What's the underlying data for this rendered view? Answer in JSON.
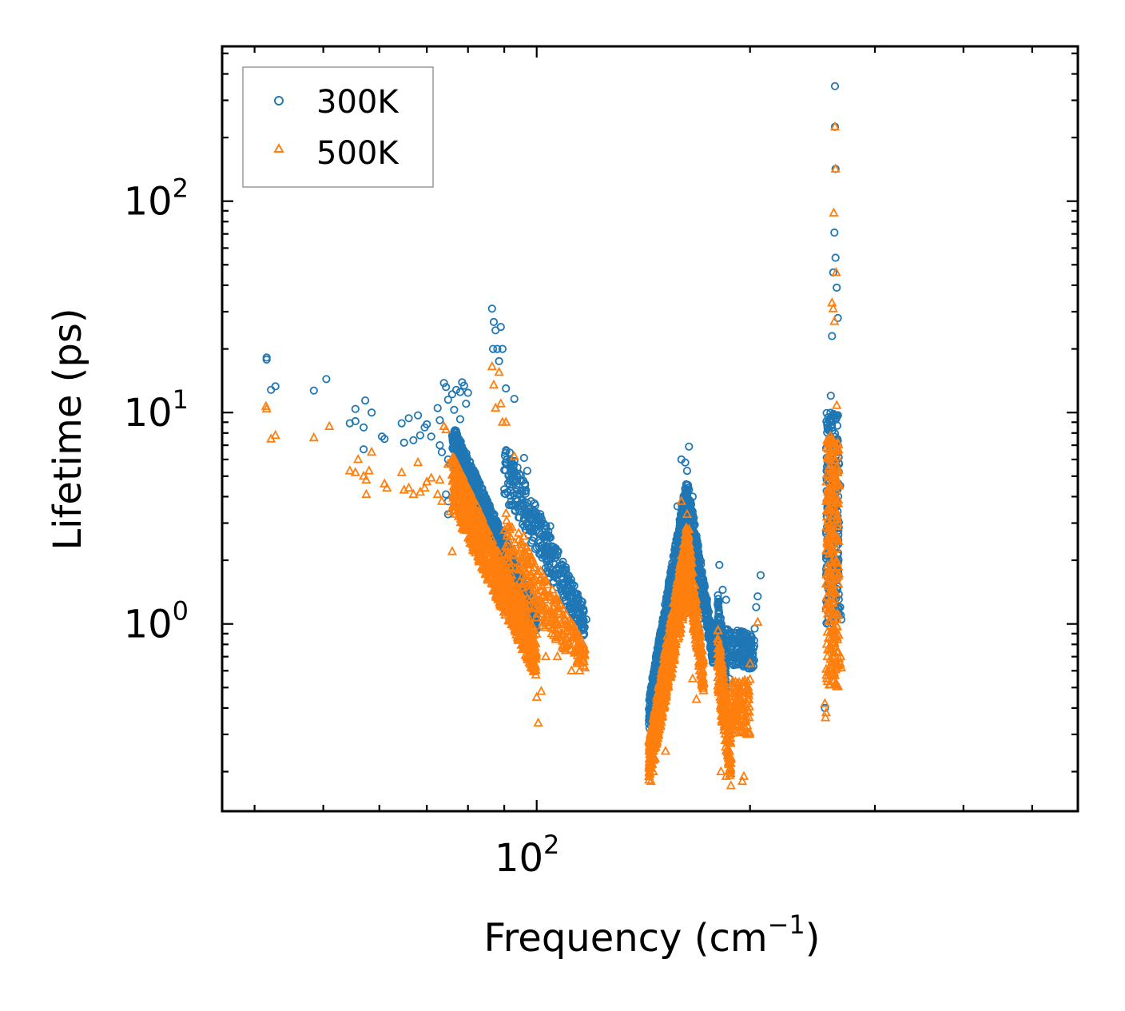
{
  "chart_data": {
    "type": "scatter",
    "title": "",
    "xlabel": "Frequency (cm",
    "xlabel_sup": "−1",
    "xlabel_end": ")",
    "ylabel": "Lifetime (ps)",
    "xscale": "log",
    "yscale": "log",
    "xlim": [
      36,
      580
    ],
    "ylim": [
      0.13,
      540
    ],
    "x_ticks": [
      {
        "value": 100,
        "base": "10",
        "exp": "2"
      }
    ],
    "y_ticks": [
      {
        "value": 1,
        "base": "10",
        "exp": "0"
      },
      {
        "value": 10,
        "base": "10",
        "exp": "1"
      },
      {
        "value": 100,
        "base": "10",
        "exp": "2"
      }
    ],
    "legend_position": "top-left",
    "series": [
      {
        "name": "300K",
        "marker": "circle",
        "color": "#1f77b4",
        "points": [
          [
            41.6,
            18.2
          ],
          [
            41.6,
            17.8
          ],
          [
            42.2,
            12.8
          ],
          [
            42.8,
            13.3
          ],
          [
            48.5,
            12.7
          ],
          [
            50.5,
            14.4
          ],
          [
            54.5,
            8.9
          ],
          [
            55.5,
            10.4
          ],
          [
            57,
            8.5
          ],
          [
            57.3,
            11.4
          ],
          [
            58.5,
            10
          ],
          [
            60.5,
            7.7
          ],
          [
            61,
            7.5
          ],
          [
            57,
            6.7
          ],
          [
            55.5,
            9.1
          ],
          [
            64.5,
            8.9
          ],
          [
            65,
            7.2
          ],
          [
            66,
            9.4
          ],
          [
            67,
            7.4
          ],
          [
            68,
            9.7
          ],
          [
            68.5,
            7.8
          ],
          [
            69.5,
            8.5
          ],
          [
            70,
            8.8
          ],
          [
            71,
            7.7
          ],
          [
            72.5,
            10.5
          ],
          [
            73,
            9.2
          ],
          [
            73,
            7
          ],
          [
            73.5,
            6.5
          ],
          [
            74,
            13.8
          ],
          [
            74.5,
            13.2
          ],
          [
            75,
            11.5
          ],
          [
            75,
            6
          ],
          [
            75.5,
            5.7
          ],
          [
            76,
            12.2
          ],
          [
            76.5,
            10.3
          ],
          [
            77,
            12.8
          ],
          [
            77,
            5.4
          ],
          [
            78,
            9.3
          ],
          [
            78,
            12.5
          ],
          [
            78.5,
            13.9
          ],
          [
            79,
            13.4
          ],
          [
            79.5,
            11
          ],
          [
            80,
            12.4
          ],
          [
            80,
            5
          ],
          [
            74.5,
            4.1
          ],
          [
            75,
            3.8
          ],
          [
            75,
            3.3
          ],
          [
            86.5,
            31
          ],
          [
            87,
            26.8
          ],
          [
            86.8,
            20
          ],
          [
            87.5,
            24.5
          ],
          [
            88.5,
            17.5
          ],
          [
            88,
            20
          ],
          [
            89,
            25.4
          ],
          [
            89.5,
            20
          ],
          [
            90.5,
            13
          ],
          [
            93,
            11.6
          ],
          [
            96,
            6.1
          ],
          [
            97,
            5.3
          ],
          [
            98,
            3.1
          ],
          [
            100,
            2.3
          ],
          [
            102,
            2.6
          ],
          [
            103,
            2.8
          ],
          [
            104.5,
            2.9
          ],
          [
            106,
            2.1
          ],
          [
            107,
            2.2
          ],
          [
            108,
            1.5
          ],
          [
            110,
            1.8
          ],
          [
            111,
            1.6
          ],
          [
            113,
            1.4
          ],
          [
            115,
            1.2
          ],
          [
            116,
            1.1
          ],
          [
            117.5,
            1.05
          ],
          [
            144,
            0.35
          ],
          [
            145,
            0.33
          ],
          [
            146,
            0.31
          ],
          [
            155,
            1.6
          ],
          [
            158,
            3.6
          ],
          [
            160,
            6
          ],
          [
            162,
            5.8
          ],
          [
            163,
            5.3
          ],
          [
            164,
            6.9
          ],
          [
            166,
            4
          ],
          [
            170,
            2
          ],
          [
            172,
            1
          ],
          [
            176,
            0.8
          ],
          [
            181,
            1.9
          ],
          [
            183,
            1.45
          ],
          [
            185,
            1.3
          ],
          [
            187,
            0.55
          ],
          [
            190,
            0.9
          ],
          [
            193,
            0.82
          ],
          [
            195,
            0.75
          ],
          [
            197,
            0.71
          ],
          [
            200,
            0.67
          ],
          [
            203,
            0.95
          ],
          [
            204,
            1.2
          ],
          [
            205,
            1.35
          ],
          [
            207,
            1.7
          ],
          [
            255,
            0.4
          ],
          [
            257,
            2.5
          ],
          [
            258,
            4
          ],
          [
            259,
            7
          ],
          [
            260,
            12
          ],
          [
            261,
            23
          ],
          [
            262,
            46
          ],
          [
            263,
            71
          ],
          [
            264,
            54
          ],
          [
            265,
            39
          ],
          [
            266,
            28
          ],
          [
            263.5,
            225
          ],
          [
            264,
            142
          ],
          [
            263.5,
            350
          ],
          [
            265,
            5.5
          ],
          [
            267,
            5.7
          ],
          [
            268,
            4.5
          ],
          [
            266,
            1.5
          ],
          [
            268,
            1.2
          ],
          [
            268.5,
            1.1
          ],
          [
            269,
            1.05
          ]
        ],
        "bands": [
          {
            "x": [
              76,
              100
            ],
            "y_top": [
              9.0,
              1.2
            ],
            "y_bot": [
              6.8,
              0.9
            ],
            "n": 900
          },
          {
            "x": [
              90,
              117
            ],
            "y_top": [
              7.5,
              1.2
            ],
            "y_bot": [
              4.0,
              0.85
            ],
            "n": 350
          },
          {
            "x": [
              144,
              163
            ],
            "y_top": [
              0.45,
              5.0
            ],
            "y_bot": [
              0.3,
              3.0
            ],
            "n": 700
          },
          {
            "x": [
              163,
              178
            ],
            "y_top": [
              5.0,
              0.8
            ],
            "y_bot": [
              3.2,
              0.6
            ],
            "n": 350
          },
          {
            "x": [
              180,
              185
            ],
            "y_top": [
              1.4,
              0.7
            ],
            "y_bot": [
              0.9,
              0.3
            ],
            "n": 180
          },
          {
            "x": [
              185,
              203
            ],
            "y_top": [
              0.95,
              0.9
            ],
            "y_bot": [
              0.65,
              0.6
            ],
            "n": 160
          },
          {
            "x": [
              256,
              267
            ],
            "y_top": [
              10,
              10
            ],
            "y_bot": [
              1.0,
              1.0
            ],
            "n": 260
          }
        ]
      },
      {
        "name": "500K",
        "marker": "triangle",
        "color": "#ff7f0e",
        "points": [
          [
            41.5,
            10.7
          ],
          [
            41.6,
            10.4
          ],
          [
            42.2,
            7.5
          ],
          [
            42.8,
            7.8
          ],
          [
            48.5,
            7.6
          ],
          [
            51,
            8.6
          ],
          [
            54.5,
            5.3
          ],
          [
            55.5,
            5.2
          ],
          [
            56,
            6
          ],
          [
            57,
            5
          ],
          [
            57.5,
            4.8
          ],
          [
            58,
            5.3
          ],
          [
            57.5,
            4.1
          ],
          [
            58.5,
            6.5
          ],
          [
            61,
            4.6
          ],
          [
            61.5,
            4.4
          ],
          [
            64.5,
            5.2
          ],
          [
            65,
            4.3
          ],
          [
            66,
            4.4
          ],
          [
            67,
            4.1
          ],
          [
            68,
            5.8
          ],
          [
            68.5,
            4.2
          ],
          [
            69.5,
            4.4
          ],
          [
            70,
            4.7
          ],
          [
            71,
            4.9
          ],
          [
            72.5,
            4.1
          ],
          [
            73,
            4.8
          ],
          [
            73.5,
            3.8
          ],
          [
            74,
            8.6
          ],
          [
            74.5,
            8.3
          ],
          [
            75,
            5.7
          ],
          [
            75.5,
            3.4
          ],
          [
            76,
            2.2
          ],
          [
            77,
            3.6
          ],
          [
            78,
            3.3
          ],
          [
            79,
            3.1
          ],
          [
            80,
            3.4
          ],
          [
            86.5,
            16.5
          ],
          [
            87,
            13.5
          ],
          [
            87.5,
            10.5
          ],
          [
            88.5,
            15.5
          ],
          [
            89,
            11
          ],
          [
            89.5,
            9
          ],
          [
            90.5,
            9
          ],
          [
            93,
            6.2
          ],
          [
            96,
            2.6
          ],
          [
            97,
            1.9
          ],
          [
            99,
            0.6
          ],
          [
            100,
            0.45
          ],
          [
            100.5,
            0.34
          ],
          [
            101.5,
            0.48
          ],
          [
            103,
            0.7
          ],
          [
            105,
            0.9
          ],
          [
            107,
            0.7
          ],
          [
            110,
            0.75
          ],
          [
            112,
            0.6
          ],
          [
            114,
            0.65
          ],
          [
            115,
            0.6
          ],
          [
            117,
            0.62
          ],
          [
            144,
            0.19
          ],
          [
            145,
            0.18
          ],
          [
            146,
            0.2
          ],
          [
            147,
            0.23
          ],
          [
            152,
            0.25
          ],
          [
            158,
            1.4
          ],
          [
            160,
            3.8
          ],
          [
            163,
            3.3
          ],
          [
            164,
            2.8
          ],
          [
            166,
            0.55
          ],
          [
            168,
            0.44
          ],
          [
            170,
            0.6
          ],
          [
            172,
            0.53
          ],
          [
            182,
            0.2
          ],
          [
            185,
            0.19
          ],
          [
            187,
            0.3
          ],
          [
            190,
            0.42
          ],
          [
            193,
            0.48
          ],
          [
            195,
            0.18
          ],
          [
            196,
            0.19
          ],
          [
            200,
            0.65
          ],
          [
            205,
            1.02
          ],
          [
            255,
            0.42
          ],
          [
            255.5,
            0.36
          ],
          [
            256,
            0.38
          ],
          [
            257,
            0.7
          ],
          [
            261,
            33
          ],
          [
            262,
            31
          ],
          [
            263,
            27
          ],
          [
            262.5,
            88
          ],
          [
            263.5,
            225
          ],
          [
            264,
            142
          ],
          [
            264.5,
            46
          ],
          [
            265,
            10.8
          ],
          [
            266,
            3
          ],
          [
            267,
            4.5
          ],
          [
            268,
            0.65
          ],
          [
            268.5,
            0.7
          ],
          [
            269,
            0.62
          ]
        ],
        "bands": [
          {
            "x": [
              76,
              100
            ],
            "y_top": [
              6.5,
              0.9
            ],
            "y_bot": [
              3.5,
              0.55
            ],
            "n": 900
          },
          {
            "x": [
              90,
              117
            ],
            "y_top": [
              3.5,
              0.8
            ],
            "y_bot": [
              1.5,
              0.6
            ],
            "n": 300
          },
          {
            "x": [
              144,
              163
            ],
            "y_top": [
              0.28,
              3.0
            ],
            "y_bot": [
              0.18,
              1.3
            ],
            "n": 700
          },
          {
            "x": [
              163,
              172
            ],
            "y_top": [
              3.0,
              0.7
            ],
            "y_bot": [
              1.5,
              0.45
            ],
            "n": 260
          },
          {
            "x": [
              180,
              188
            ],
            "y_top": [
              1.0,
              0.3
            ],
            "y_bot": [
              0.5,
              0.17
            ],
            "n": 220
          },
          {
            "x": [
              188,
              200
            ],
            "y_top": [
              0.55,
              0.55
            ],
            "y_bot": [
              0.3,
              0.3
            ],
            "n": 120
          },
          {
            "x": [
              256,
              267
            ],
            "y_top": [
              8,
              8
            ],
            "y_bot": [
              0.5,
              0.5
            ],
            "n": 260
          }
        ]
      }
    ]
  }
}
